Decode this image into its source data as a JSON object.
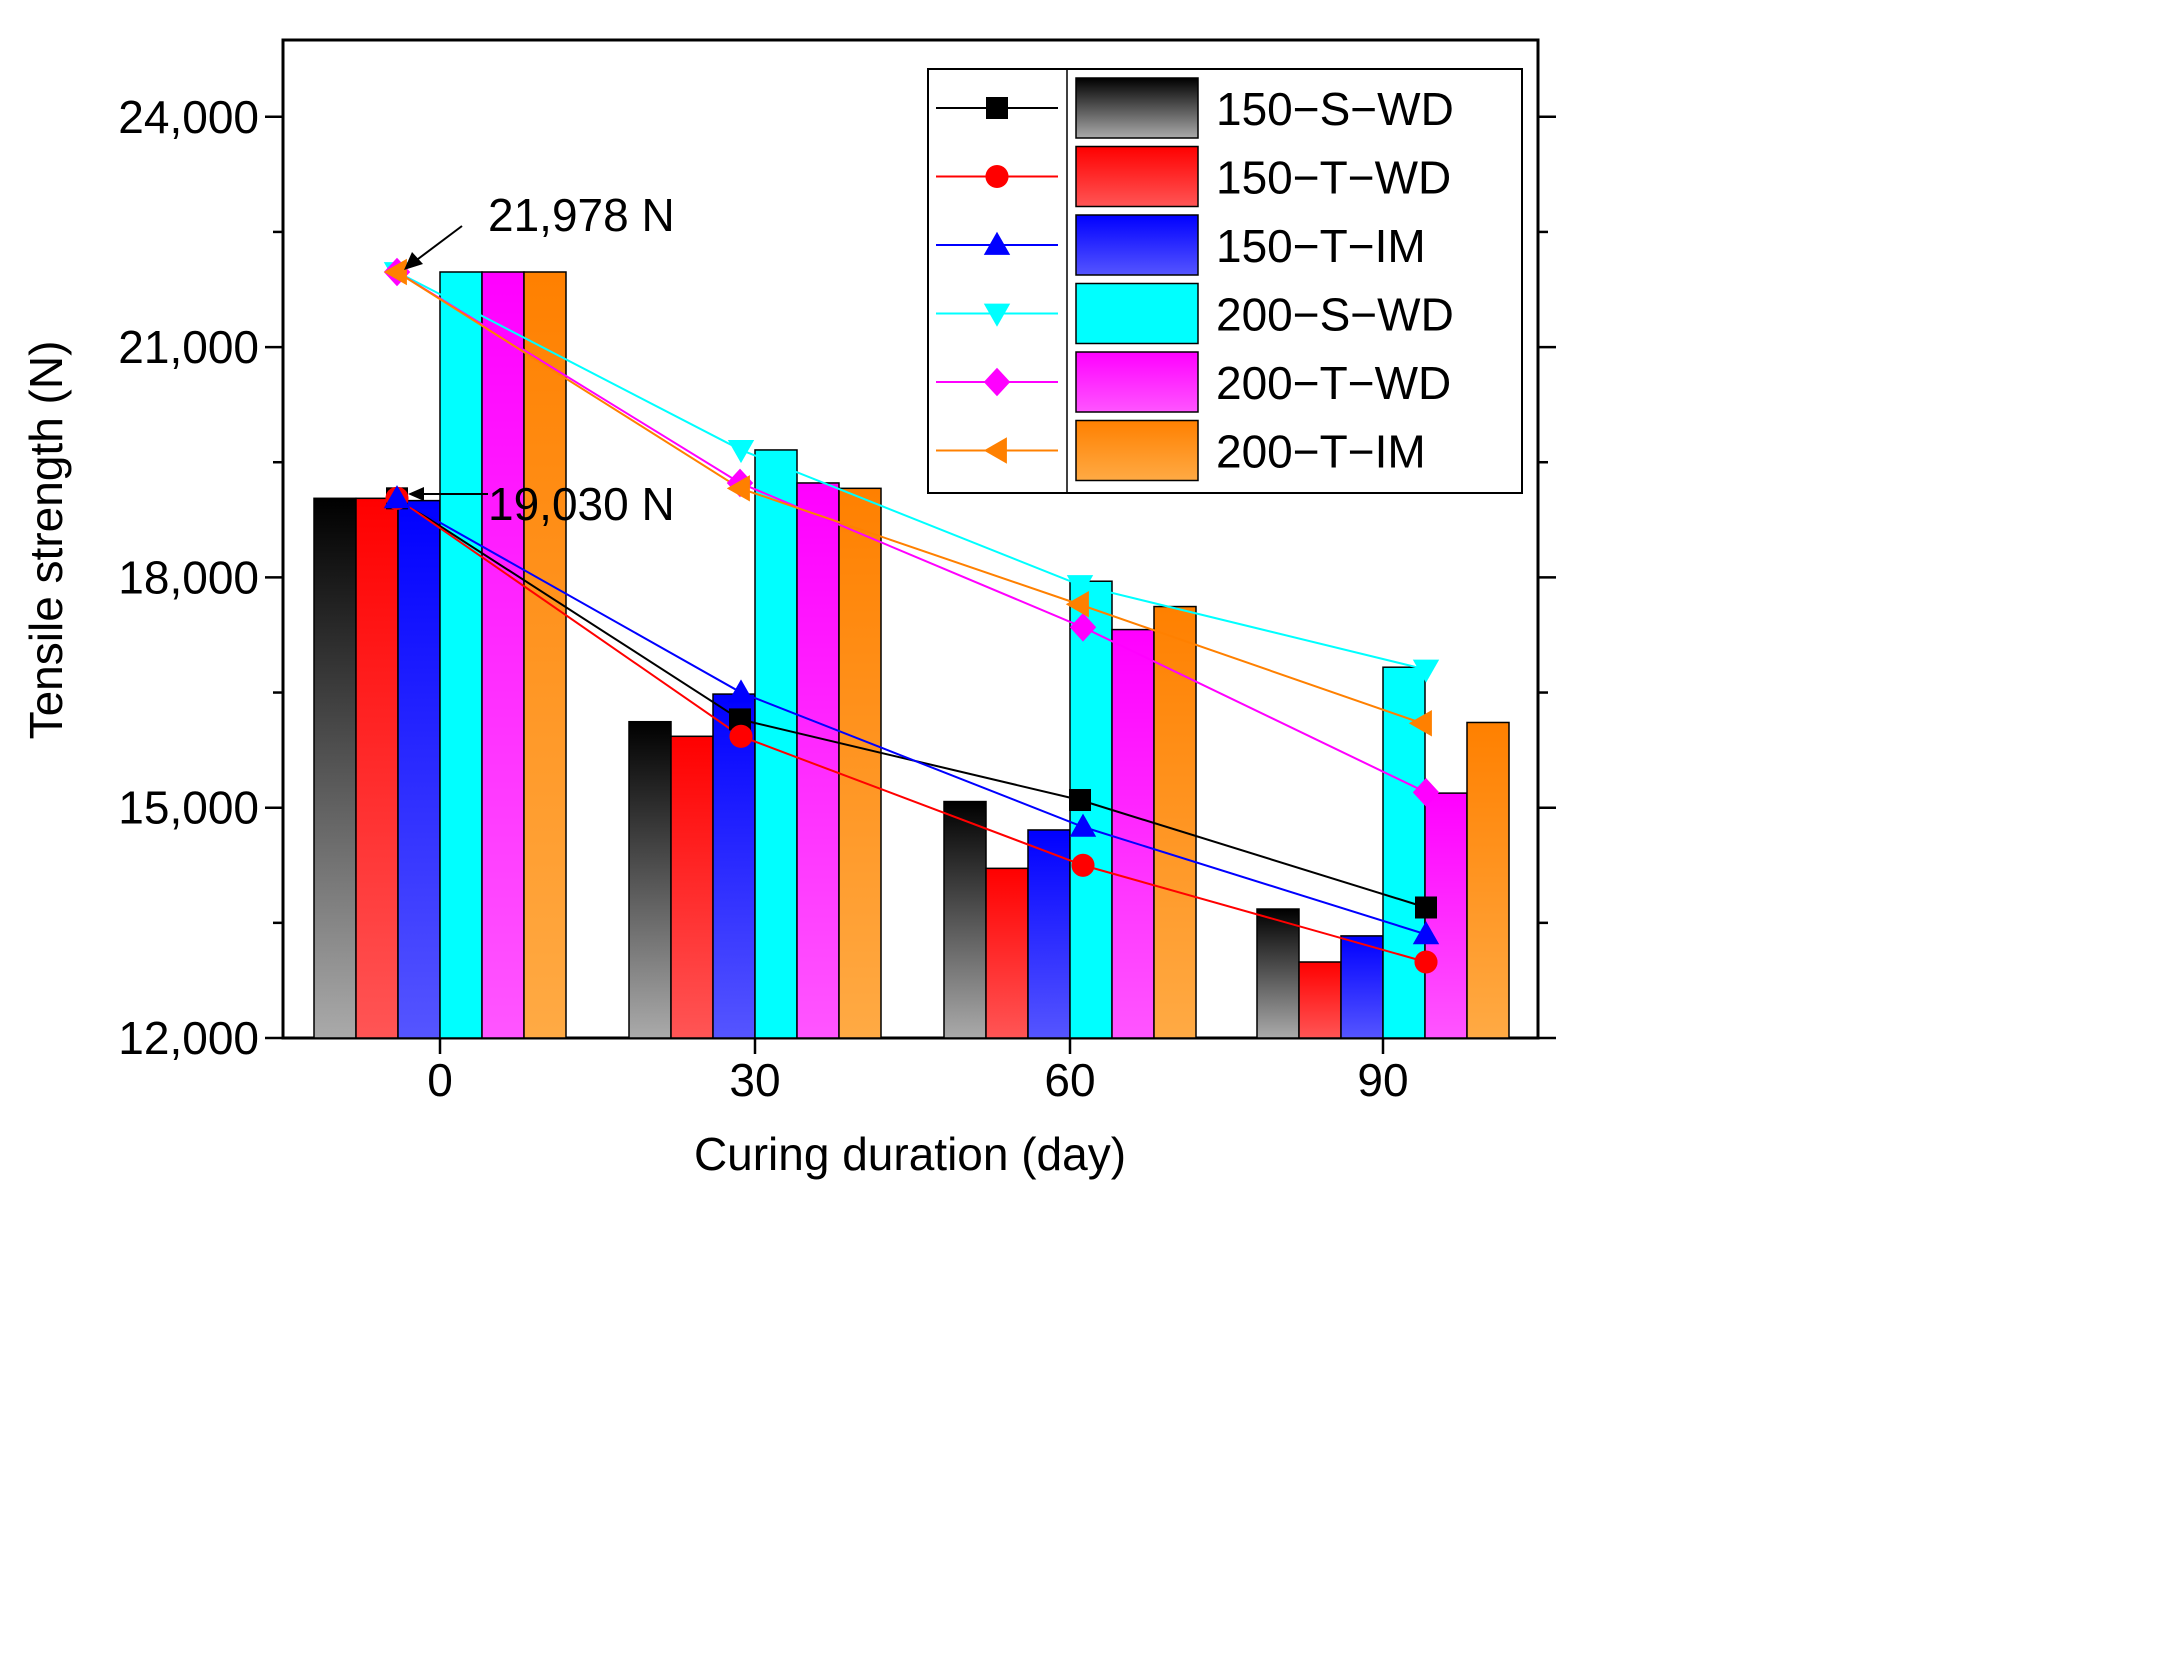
{
  "chart_data": {
    "type": "bar",
    "title": "",
    "xlabel": "Curing duration (day)",
    "ylabel": "Tensile strength (N)",
    "categories": [
      "0",
      "30",
      "60",
      "90"
    ],
    "ylim": [
      12000,
      25000
    ],
    "yticks": [
      12000,
      15000,
      18000,
      21000,
      24000
    ],
    "ytick_labels": [
      "12,000",
      "15,000",
      "18,000",
      "21,000",
      "24,000"
    ],
    "legend_position": "top-right",
    "series": [
      {
        "name": "150−S−WD",
        "color": "#000000",
        "bar_top": "#000000",
        "bar_bottom": "#aaaaaa",
        "marker": "square",
        "values": [
          19030,
          16120,
          15080,
          13680
        ],
        "line_values": [
          19030,
          16150,
          15100,
          13700
        ]
      },
      {
        "name": "150−T−WD",
        "color": "#ff0000",
        "bar_top": "#ff0000",
        "bar_bottom": "#ff5555",
        "marker": "circle",
        "values": [
          19030,
          15930,
          14210,
          12990
        ],
        "line_values": [
          19030,
          15930,
          14250,
          12990
        ]
      },
      {
        "name": "150−T−IM",
        "color": "#0000ff",
        "bar_top": "#0000ff",
        "bar_bottom": "#5555ff",
        "marker": "triangle-up",
        "values": [
          19000,
          16480,
          14710,
          13330
        ],
        "line_values": [
          19030,
          16500,
          14750,
          13350
        ]
      },
      {
        "name": "200−S−WD",
        "color": "#00ffff",
        "bar_top": "#00ffff",
        "bar_bottom": "#00ffff",
        "marker": "triangle-down",
        "values": [
          21978,
          19660,
          17950,
          16830
        ],
        "line_values": [
          21978,
          19660,
          17900,
          16800
        ]
      },
      {
        "name": "200−T−WD",
        "color": "#ff00ff",
        "bar_top": "#ff00ff",
        "bar_bottom": "#ff55ff",
        "marker": "diamond",
        "values": [
          21978,
          19230,
          17320,
          15190
        ],
        "line_values": [
          21978,
          19230,
          17350,
          15200
        ]
      },
      {
        "name": "200−T−IM",
        "color": "#ff8000",
        "bar_top": "#ff8000",
        "bar_bottom": "#ffaa44",
        "marker": "triangle-left",
        "values": [
          21978,
          19160,
          17620,
          16110
        ],
        "line_values": [
          21978,
          19160,
          17650,
          16100
        ]
      }
    ],
    "annotations": [
      {
        "text": "21,978 N",
        "value": 21978
      },
      {
        "text": "19,030 N",
        "value": 19030
      }
    ]
  }
}
